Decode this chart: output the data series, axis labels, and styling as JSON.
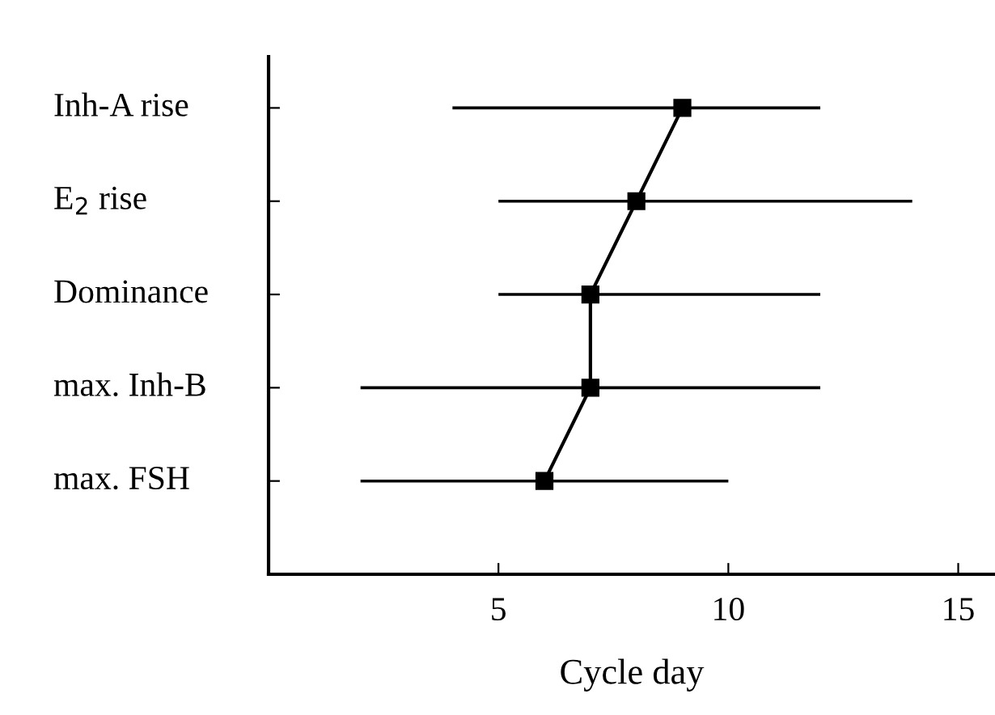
{
  "chart_data": {
    "type": "line",
    "orientation": "horizontal",
    "xlabel": "Cycle day",
    "categories": [
      "Inh-A rise",
      "E$_{2}$ rise",
      "Dominance",
      "max. Inh-B",
      "max. FSH"
    ],
    "series": [
      {
        "color": "#000000",
        "values": [
          9,
          8,
          7,
          7,
          6
        ],
        "errors": [
          [
            4,
            12
          ],
          [
            5,
            14
          ],
          [
            5,
            12
          ],
          [
            2,
            12
          ],
          [
            2,
            10
          ]
        ]
      }
    ],
    "xlim": [
      0,
      15.8
    ],
    "xticks": [
      5,
      10,
      15
    ],
    "marker": "square",
    "line_style": "solid",
    "grid": false,
    "legend": false
  }
}
